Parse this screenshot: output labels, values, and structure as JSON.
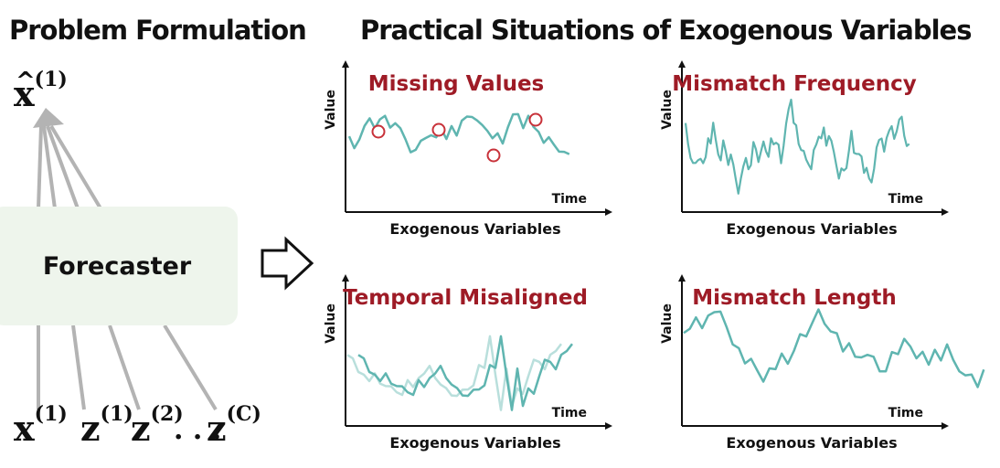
{
  "left": {
    "title": "Problem Formulation",
    "forecaster": "Forecaster",
    "output": {
      "base": "x",
      "sup": "(1)"
    },
    "inputs": [
      {
        "base": "x",
        "sup": "(1)"
      },
      {
        "base": "z",
        "sup": "(1)"
      },
      {
        "base": "z",
        "sup": "(2)"
      },
      {
        "base": ". . .",
        "sup": ""
      },
      {
        "base": "z",
        "sup": "(C)"
      }
    ]
  },
  "right": {
    "title": "Practical Situations of Exogenous Variables",
    "panels": [
      {
        "title": "Missing Values",
        "xlabel": "Exogenous Variables",
        "ylabel": "Value",
        "time": "Time"
      },
      {
        "title": "Mismatch Frequency",
        "xlabel": "Exogenous Variables",
        "ylabel": "Value",
        "time": "Time"
      },
      {
        "title": "Temporal Misaligned",
        "xlabel": "Exogenous Variables",
        "ylabel": "Value",
        "time": "Time"
      },
      {
        "title": "Mismatch Length",
        "xlabel": "Exogenous Variables",
        "ylabel": "Value",
        "time": "Time"
      }
    ]
  },
  "colors": {
    "accent_title": "#9e1b26",
    "series": "#5fb5b0",
    "series_light": "#b9dfdc",
    "marker": "#c8323a",
    "arrow_lines": "#b3b3b3",
    "box": "#eef5ec"
  }
}
